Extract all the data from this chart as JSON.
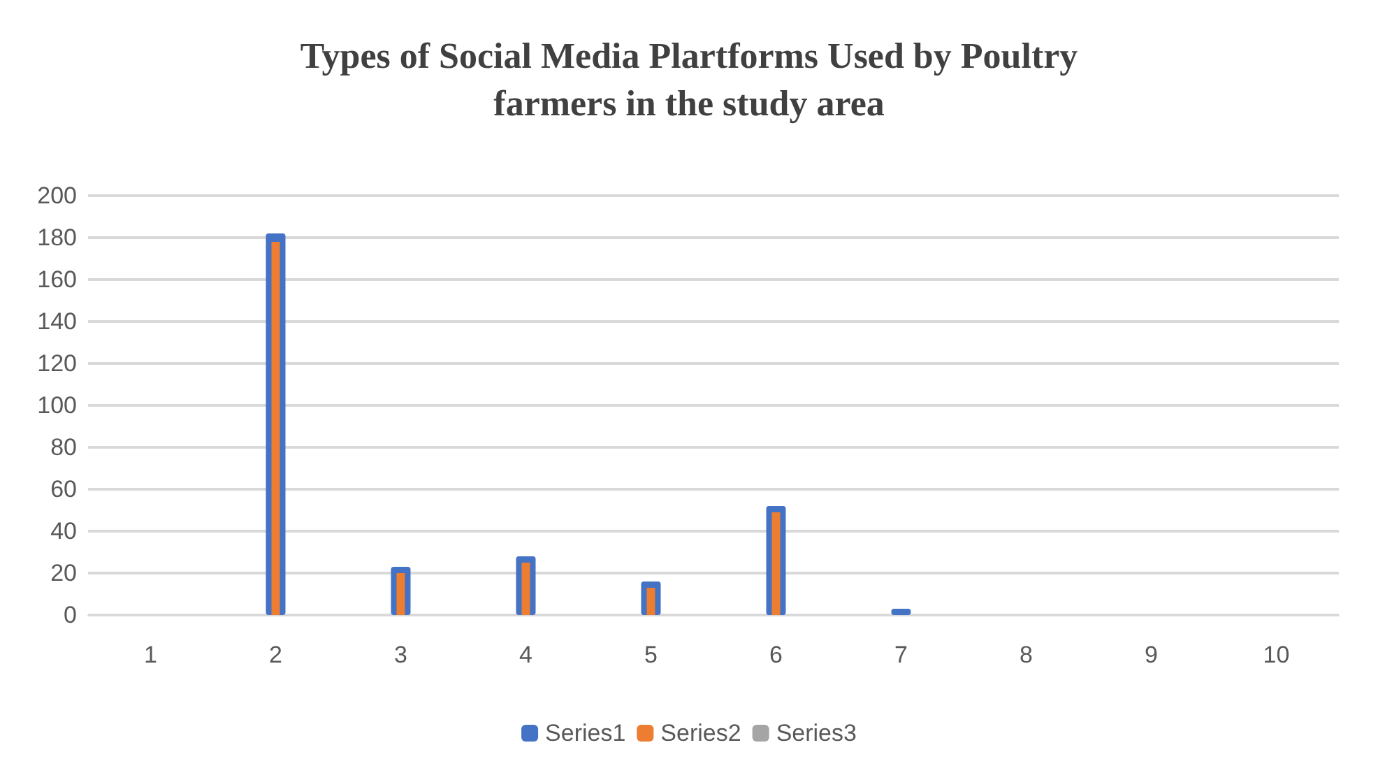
{
  "chart_data": {
    "type": "bar",
    "title": "Types of Social Media Plartforms Used by Poultry\nfarmers in the study area",
    "categories": [
      "1",
      "2",
      "3",
      "4",
      "5",
      "6",
      "7",
      "8",
      "9",
      "10"
    ],
    "series": [
      {
        "name": "Series1",
        "color": "#4472c4",
        "values": [
          null,
          182,
          23,
          28,
          16,
          52,
          3,
          null,
          null,
          null
        ]
      },
      {
        "name": "Series2",
        "color": "#ed7d31",
        "values": [
          null,
          178,
          20,
          25,
          13,
          49,
          null,
          null,
          null,
          null
        ]
      },
      {
        "name": "Series3",
        "color": "#a5a5a5",
        "values": [
          null,
          null,
          null,
          null,
          null,
          null,
          null,
          null,
          null,
          null
        ]
      }
    ],
    "ylim": [
      0,
      200
    ],
    "yticks": [
      0,
      20,
      40,
      60,
      80,
      100,
      120,
      140,
      160,
      180,
      200
    ],
    "grid": "y",
    "legend": "bottom"
  }
}
